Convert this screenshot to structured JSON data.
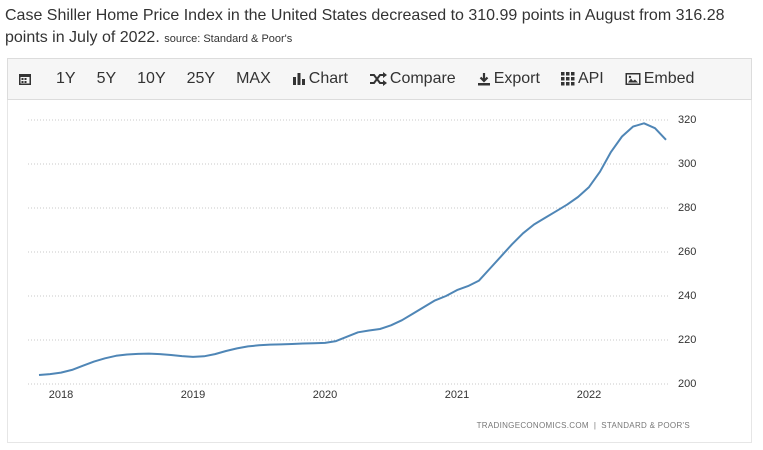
{
  "header": {
    "title": "Case Shiller Home Price Index in the United States decreased to 310.99 points in August from 316.28 points in July of 2022.",
    "source": "source: Standard & Poor's"
  },
  "toolbar": {
    "items": [
      "1Y",
      "5Y",
      "10Y",
      "25Y",
      "MAX",
      "Chart",
      "Compare",
      "Export",
      "API",
      "Embed"
    ]
  },
  "chart_data": {
    "type": "line",
    "color": "#4f86b6",
    "x": [
      "2017-11",
      "2017-12",
      "2018-01",
      "2018-02",
      "2018-03",
      "2018-04",
      "2018-05",
      "2018-06",
      "2018-07",
      "2018-08",
      "2018-09",
      "2018-10",
      "2018-11",
      "2018-12",
      "2019-01",
      "2019-02",
      "2019-03",
      "2019-04",
      "2019-05",
      "2019-06",
      "2019-07",
      "2019-08",
      "2019-09",
      "2019-10",
      "2019-11",
      "2019-12",
      "2020-01",
      "2020-02",
      "2020-03",
      "2020-04",
      "2020-05",
      "2020-06",
      "2020-07",
      "2020-08",
      "2020-09",
      "2020-10",
      "2020-11",
      "2020-12",
      "2021-01",
      "2021-02",
      "2021-03",
      "2021-04",
      "2021-05",
      "2021-06",
      "2021-07",
      "2021-08",
      "2021-09",
      "2021-10",
      "2021-11",
      "2021-12",
      "2022-01",
      "2022-02",
      "2022-03",
      "2022-04",
      "2022-05",
      "2022-06",
      "2022-07",
      "2022-08"
    ],
    "values": [
      204.1,
      204.5,
      205.2,
      206.4,
      208.3,
      210.2,
      211.7,
      212.8,
      213.4,
      213.7,
      213.8,
      213.6,
      213.2,
      212.7,
      212.3,
      212.6,
      213.6,
      215,
      216.2,
      217.1,
      217.6,
      217.9,
      218,
      218.2,
      218.4,
      218.5,
      218.7,
      219.5,
      221.5,
      223.5,
      224.3,
      225,
      226.7,
      229,
      232,
      235,
      238,
      240,
      242.7,
      244.5,
      247,
      252.5,
      258,
      263.5,
      268.5,
      272.5,
      275.5,
      278.5,
      281.5,
      285,
      289.5,
      296.5,
      305.5,
      312.5,
      317,
      318.5,
      316.28,
      310.99
    ],
    "xlim": [
      "2017-10",
      "2022-08"
    ],
    "xticks": [
      "2018",
      "2019",
      "2020",
      "2021",
      "2022"
    ],
    "ylim": [
      200,
      320
    ],
    "yticks": [
      200,
      220,
      240,
      260,
      280,
      300,
      320
    ],
    "grid": true,
    "credit": "TRADINGECONOMICS.COM  |  STANDARD & POOR'S"
  }
}
